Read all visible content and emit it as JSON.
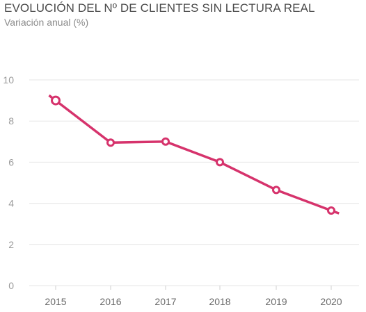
{
  "chart_data": {
    "type": "line",
    "title": "EVOLUCIÓN DEL Nº DE CLIENTES SIN LECTURA REAL",
    "subtitle": "Variación anual (%)",
    "categories": [
      "2015",
      "2016",
      "2017",
      "2018",
      "2019",
      "2020"
    ],
    "series": [
      {
        "values": [
          9.0,
          6.95,
          7.0,
          6.0,
          4.65,
          3.65
        ]
      }
    ],
    "yticks": [
      "0",
      "2",
      "4",
      "6",
      "8",
      "10"
    ],
    "ylim": [
      0,
      10
    ],
    "grid": true,
    "line_color": "#d6336c"
  }
}
